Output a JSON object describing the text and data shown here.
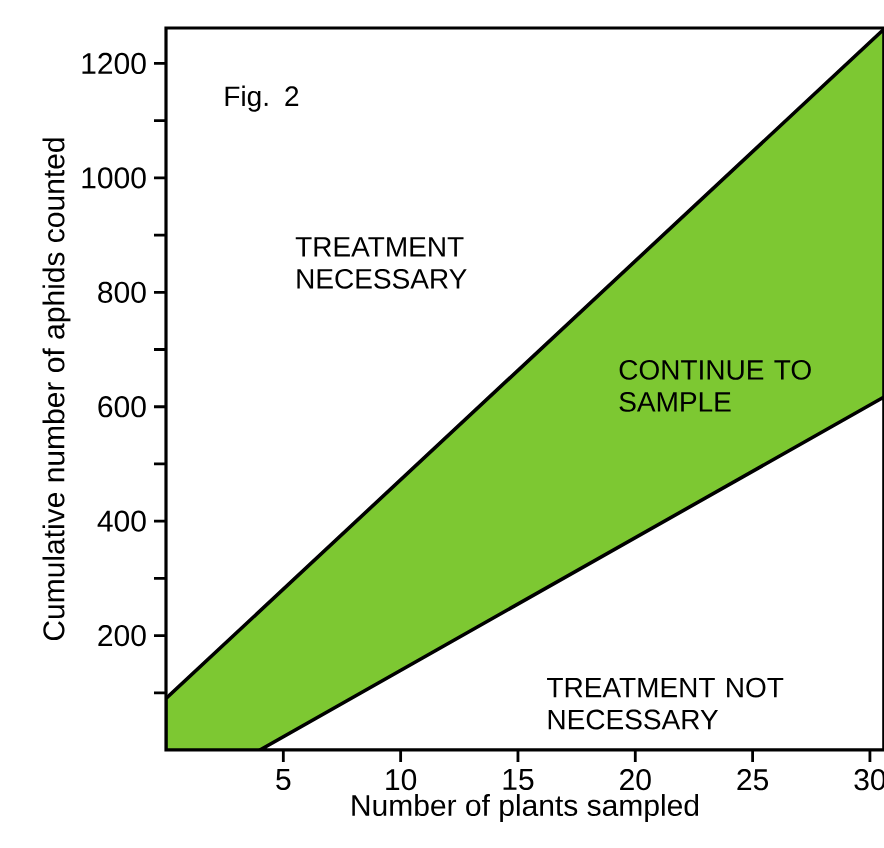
{
  "chart_data": {
    "type": "area",
    "xlabel": "Number of plants sampled",
    "ylabel": "Cumulative number of aphids counted",
    "xlim": [
      0,
      30.6
    ],
    "ylim": [
      0,
      1262
    ],
    "xticks": [
      5,
      10,
      15,
      20,
      25,
      30
    ],
    "yticks": [
      {
        "value": 100,
        "label": null
      },
      200,
      {
        "value": 300,
        "label": null
      },
      400,
      {
        "value": 500,
        "label": null
      },
      600,
      {
        "value": 700,
        "label": null
      },
      800,
      {
        "value": 900,
        "label": null
      },
      1000,
      {
        "value": 1100,
        "label": null
      },
      1200
    ],
    "series": [
      {
        "color": "#7dc832",
        "x": [
          0,
          30.6
        ],
        "values": [
          90,
          1260
        ]
      },
      {
        "color": "#ffffff",
        "x": [
          4,
          30.6
        ],
        "values": [
          0,
          617
        ]
      }
    ],
    "annotations": [
      "Fig. 2",
      "TREATMENT NECESSARY",
      "CONTINUE TO SAMPLE",
      "TREATMENT NOT NECESSARY"
    ]
  }
}
